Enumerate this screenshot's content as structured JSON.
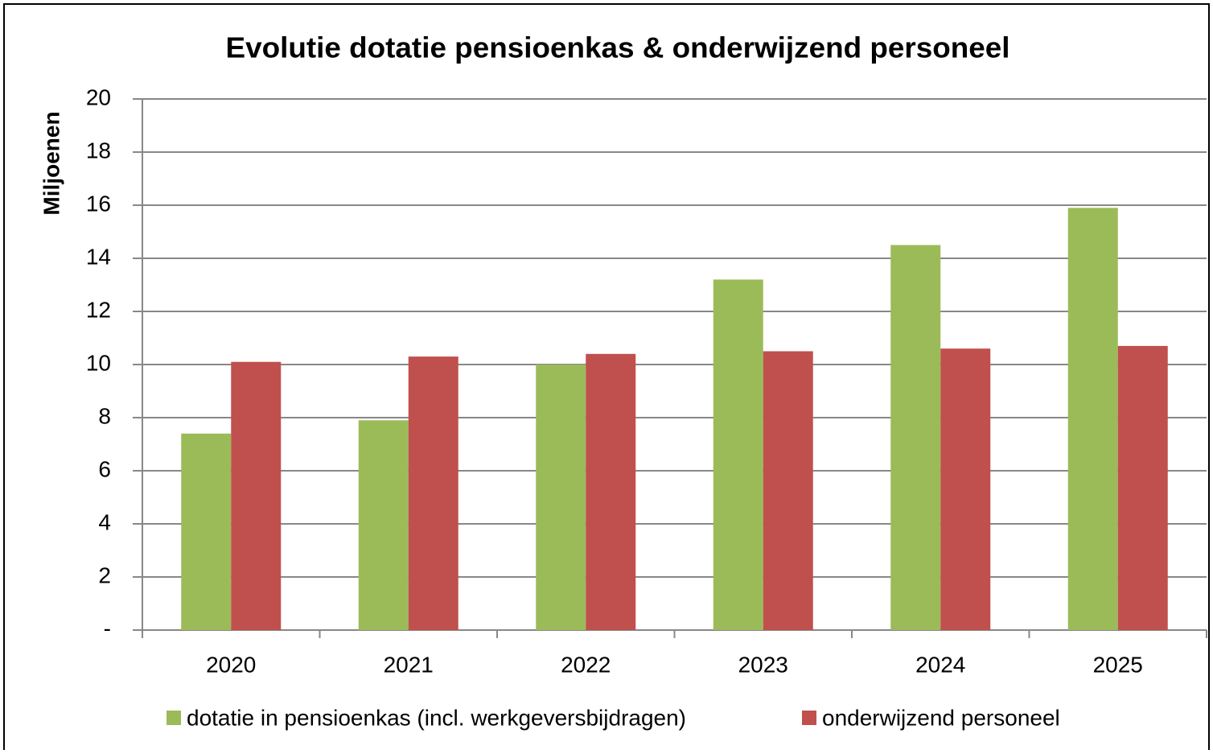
{
  "chart_data": {
    "type": "bar",
    "title": "Evolutie dotatie pensioenkas & onderwijzend personeel",
    "y_label": "Miljoenen",
    "categories": [
      "2020",
      "2021",
      "2022",
      "2023",
      "2024",
      "2025"
    ],
    "series": [
      {
        "name": "dotatie in pensioenkas (incl. werkgeversbijdragen)",
        "color": "#9bbb59",
        "values": [
          7.4,
          7.9,
          10.0,
          13.2,
          14.5,
          15.9
        ]
      },
      {
        "name": "onderwijzend personeel",
        "color": "#c0504d",
        "values": [
          10.1,
          10.3,
          10.4,
          10.5,
          10.6,
          10.7
        ]
      }
    ],
    "ylim": [
      0,
      20
    ],
    "yticks": [
      {
        "value": 0,
        "label": "-"
      },
      2,
      4,
      6,
      8,
      10,
      12,
      14,
      16,
      18,
      20
    ],
    "grid": true,
    "legend": "bottom"
  }
}
